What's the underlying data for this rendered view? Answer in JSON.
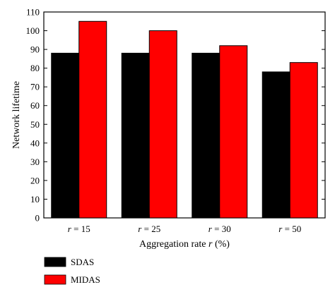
{
  "chart_data": {
    "type": "bar",
    "categories": [
      "r = 15",
      "r = 25",
      "r = 30",
      "r = 50"
    ],
    "series": [
      {
        "name": "SDAS",
        "values": [
          88,
          88,
          88,
          78
        ],
        "color": "#000000"
      },
      {
        "name": "MIDAS",
        "values": [
          105,
          100,
          92,
          83
        ],
        "color": "#ff0000"
      }
    ],
    "xlabel": "Aggregation rate r (%)",
    "ylabel": "Network lifetime",
    "ylim": [
      0,
      110
    ],
    "yticks": [
      0,
      10,
      20,
      30,
      40,
      50,
      60,
      70,
      80,
      90,
      100,
      110
    ],
    "grid": false,
    "legend_position": "bottom-left"
  }
}
